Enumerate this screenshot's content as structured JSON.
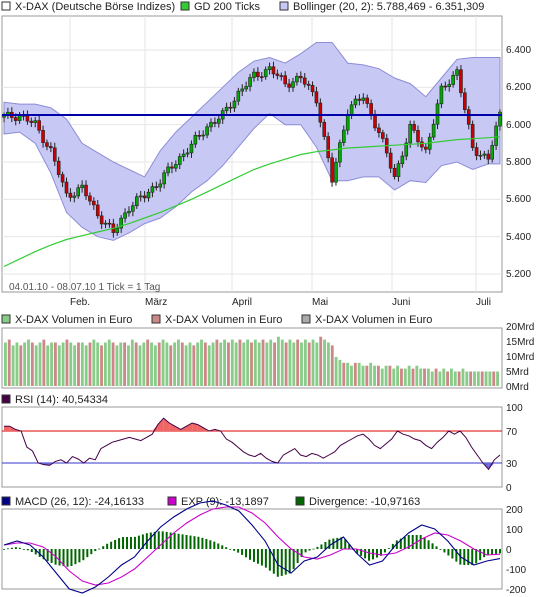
{
  "colors": {
    "price_line": "#333333",
    "up_candle": "#00aa00",
    "down_candle": "#cc0000",
    "gd200": "#33cc33",
    "bollinger_fill": "#c8c8f4",
    "bollinger_border": "#8c8cd8",
    "horizontal_line": "#0000aa",
    "vol_green": "#88cc88",
    "vol_red": "#cc8888",
    "vol_gray": "#aaaaaa",
    "rsi_line": "#440044",
    "rsi_over": "#ee6666",
    "rsi_under": "#6666dd",
    "rsi_70": "#dd0000",
    "rsi_30": "#3333cc",
    "macd_line": "#000088",
    "exp_line": "#cc00cc",
    "divergence": "#006600"
  },
  "price_panel": {
    "legend": [
      {
        "label": "X-DAX (Deutsche Börse Indizes)",
        "swatch": "#ffffff"
      },
      {
        "label": "GD 200 Ticks",
        "swatch": "#33cc33"
      },
      {
        "label": "Bollinger (20, 2): 5.788,469 - 6.351,309",
        "swatch": "#c8c8f4"
      }
    ],
    "y_ticks": [
      "6.400",
      "6.200",
      "6.000",
      "5.800",
      "5.600",
      "5.400",
      "5.200"
    ],
    "date_range_note": "04.01.10 - 08.07.10   1 Tick = 1 Tag"
  },
  "x_ticks": [
    "Feb.",
    "März",
    "April",
    "Mai",
    "Juni",
    "Juli"
  ],
  "volume_panel": {
    "legend": [
      {
        "label": "X-DAX Volumen in Euro",
        "swatch": "#88cc88"
      },
      {
        "label": "X-DAX Volumen in Euro",
        "swatch": "#cc8888"
      },
      {
        "label": "X-DAX Volumen in Euro",
        "swatch": "#aaaaaa"
      }
    ],
    "y_ticks": [
      "20Mrd",
      "15Mrd",
      "10Mrd",
      "5Mrd",
      "0Mrd"
    ]
  },
  "rsi_panel": {
    "legend": {
      "label": "RSI (14): 40,54334",
      "swatch": "#440044"
    },
    "y_ticks": [
      "100",
      "70",
      "30",
      "0"
    ]
  },
  "macd_panel": {
    "legend": [
      {
        "label": "MACD (26, 12): -24,16133",
        "swatch": "#000088"
      },
      {
        "label": "EXP (9): -13,1897",
        "swatch": "#cc00cc"
      },
      {
        "label": "Divergence: -10,97163",
        "swatch": "#006600"
      }
    ],
    "y_ticks": [
      "200",
      "100",
      "0",
      "-100",
      "-200"
    ]
  },
  "chart_data": [
    {
      "type": "line",
      "x_axis_labels": [
        "Feb.",
        "März",
        "April",
        "Mai",
        "Juni",
        "Juli"
      ],
      "ylim": [
        5150,
        6500
      ],
      "x": [
        0,
        4,
        8,
        12,
        16,
        20,
        24,
        28,
        32,
        36,
        40,
        44,
        48,
        52,
        56,
        60,
        64,
        68,
        72,
        76,
        80,
        84,
        88,
        92,
        96,
        100,
        104,
        108,
        112,
        116,
        120,
        124,
        127
      ],
      "series": [
        {
          "name": "X-DAX (Deutsche Börse Indizes)",
          "values": [
            6040,
            6050,
            6000,
            5860,
            5620,
            5660,
            5520,
            5420,
            5560,
            5620,
            5700,
            5800,
            5890,
            5990,
            6050,
            6170,
            6260,
            6300,
            6220,
            6250,
            6140,
            5700,
            6080,
            6150,
            5960,
            5720,
            5980,
            5860,
            6180,
            6290,
            5870,
            5820,
            6050
          ]
        },
        {
          "name": "GD 200 Ticks",
          "values": [
            5240,
            5280,
            5320,
            5355,
            5385,
            5405,
            5425,
            5445,
            5470,
            5500,
            5530,
            5565,
            5600,
            5640,
            5680,
            5720,
            5760,
            5790,
            5815,
            5840,
            5855,
            5865,
            5875,
            5880,
            5885,
            5890,
            5895,
            5900,
            5910,
            5920,
            5925,
            5930,
            5935
          ]
        },
        {
          "name": "Bollinger (20, 2): 5.788,469 - 6.351,309",
          "upper": [
            6120,
            6110,
            6110,
            6090,
            6030,
            5900,
            5850,
            5800,
            5760,
            5720,
            5860,
            5960,
            6040,
            6120,
            6200,
            6280,
            6340,
            6360,
            6330,
            6380,
            6440,
            6440,
            6330,
            6320,
            6300,
            6250,
            6220,
            6150,
            6250,
            6350,
            6360,
            6360,
            6360
          ],
          "lower": [
            5950,
            5960,
            5900,
            5740,
            5530,
            5450,
            5400,
            5380,
            5420,
            5470,
            5500,
            5560,
            5640,
            5700,
            5780,
            5880,
            5980,
            6060,
            6000,
            6000,
            5880,
            5700,
            5700,
            5720,
            5720,
            5650,
            5700,
            5690,
            5780,
            5800,
            5760,
            5790,
            5790
          ]
        }
      ],
      "annotations": [
        "horizontal line at ~6.050"
      ]
    },
    {
      "type": "bar",
      "ylim": [
        0,
        20
      ],
      "ylabel": "Mrd",
      "series": [
        {
          "name": "X-DAX Volumen in Euro",
          "values": [
            15,
            16,
            14,
            15,
            14,
            15,
            16,
            15,
            14,
            15,
            16,
            14,
            15,
            15,
            14,
            15,
            16,
            15,
            14,
            15,
            15,
            14,
            15,
            16,
            15,
            14,
            15,
            16,
            15,
            14,
            15,
            15,
            14,
            16,
            15,
            14,
            15,
            16,
            15,
            14,
            15,
            16,
            15,
            14,
            15,
            16,
            15,
            14,
            15,
            14,
            15,
            16,
            15,
            14,
            15,
            16,
            15,
            16,
            15,
            16,
            15,
            16,
            15,
            16,
            15,
            16,
            15,
            16,
            15,
            16,
            15,
            17,
            16,
            15,
            16,
            15,
            16,
            15,
            16,
            15,
            16,
            15,
            17,
            16,
            15,
            14,
            10,
            9,
            8,
            8,
            7,
            8,
            8,
            7,
            7,
            8,
            7,
            7,
            6,
            7,
            7,
            6,
            7,
            6,
            6,
            7,
            6,
            7,
            6,
            6,
            6,
            5,
            6,
            5,
            6,
            5,
            6,
            5,
            5,
            6,
            5,
            5,
            5,
            5,
            5,
            5,
            5,
            5,
            5
          ]
        }
      ]
    },
    {
      "type": "line",
      "ylim": [
        0,
        100
      ],
      "series": [
        {
          "name": "RSI (14)",
          "values": [
            76,
            76,
            72,
            70,
            50,
            45,
            30,
            28,
            27,
            32,
            34,
            30,
            38,
            35,
            30,
            36,
            34,
            48,
            52,
            56,
            58,
            60,
            62,
            60,
            58,
            62,
            66,
            78,
            86,
            80,
            76,
            72,
            76,
            80,
            78,
            74,
            70,
            72,
            70,
            60,
            56,
            50,
            44,
            40,
            38,
            42,
            36,
            32,
            30,
            40,
            44,
            48,
            40,
            38,
            42,
            40,
            36,
            40,
            44,
            52,
            56,
            60,
            64,
            66,
            60,
            52,
            48,
            54,
            60,
            70,
            66,
            64,
            60,
            58,
            52,
            48,
            56,
            62,
            70,
            66,
            70,
            62,
            50,
            40,
            30,
            22,
            34,
            40
          ]
        }
      ]
    },
    {
      "type": "line",
      "ylim": [
        -200,
        200
      ],
      "series": [
        {
          "name": "MACD (26, 12)",
          "values": [
            10,
            20,
            10,
            -20,
            -60,
            -100,
            -110,
            -95,
            -70,
            -40,
            -20,
            20,
            55,
            80,
            100,
            115,
            120,
            110,
            95,
            60,
            20,
            -40,
            -60,
            -30,
            -20,
            10,
            30,
            -10,
            -40,
            -30,
            10,
            40,
            60,
            50,
            20,
            -20,
            -40,
            -30,
            -24
          ]
        },
        {
          "name": "EXP (9)",
          "values": [
            10,
            15,
            15,
            5,
            -20,
            -55,
            -80,
            -90,
            -85,
            -70,
            -50,
            -20,
            10,
            40,
            65,
            85,
            100,
            105,
            105,
            90,
            65,
            30,
            0,
            -20,
            -25,
            -15,
            0,
            0,
            -10,
            -15,
            -10,
            5,
            25,
            40,
            35,
            20,
            0,
            -15,
            -13
          ]
        },
        {
          "name": "Divergence",
          "values": [
            0,
            5,
            -5,
            -25,
            -40,
            -45,
            -30,
            -5,
            15,
            30,
            30,
            40,
            45,
            40,
            35,
            30,
            20,
            5,
            -10,
            -30,
            -45,
            -70,
            -60,
            -10,
            5,
            25,
            30,
            -10,
            -30,
            -15,
            20,
            35,
            35,
            10,
            -15,
            -40,
            -40,
            -15,
            -11
          ]
        }
      ]
    }
  ]
}
